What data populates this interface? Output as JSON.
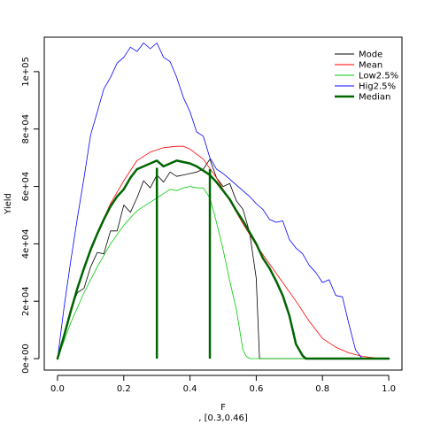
{
  "chart_data": {
    "type": "line",
    "xlabel": "F",
    "subtitle": ", [0.3,0.46]",
    "ylabel": "Yield",
    "xlim": [
      0,
      1
    ],
    "ylim": [
      -4000,
      112000
    ],
    "x_ticks": [
      0,
      0.2,
      0.4,
      0.6,
      0.8,
      1
    ],
    "x_tick_labels": [
      "0.0",
      "0.2",
      "0.4",
      "0.6",
      "0.8",
      "1.0"
    ],
    "y_ticks": [
      0,
      20000,
      40000,
      60000,
      80000,
      100000
    ],
    "y_tick_labels": [
      "0e+00",
      "2e+04",
      "4e+04",
      "6e+04",
      "8e+04",
      "1e+05"
    ],
    "legend_position": "top-right",
    "series": [
      {
        "name": "Mode",
        "color": "#000000",
        "width": 0.8,
        "x": [
          0,
          0.02,
          0.04,
          0.06,
          0.08,
          0.1,
          0.12,
          0.14,
          0.16,
          0.18,
          0.2,
          0.22,
          0.24,
          0.26,
          0.28,
          0.3,
          0.32,
          0.34,
          0.36,
          0.38,
          0.4,
          0.42,
          0.44,
          0.46,
          0.48,
          0.5,
          0.52,
          0.54,
          0.56,
          0.58,
          0.6,
          0.61,
          0.62,
          0.64,
          0.66,
          0.7,
          0.74,
          0.78,
          0.82,
          0.86,
          0.9,
          0.94,
          0.98,
          1.0
        ],
        "y": [
          0,
          8000,
          17000,
          23000,
          24500,
          32000,
          37000,
          36500,
          44500,
          44500,
          53500,
          51000,
          56000,
          62000,
          59500,
          64000,
          61500,
          65000,
          63500,
          64000,
          64500,
          65000,
          66000,
          69500,
          63000,
          60000,
          61000,
          55000,
          52000,
          44000,
          28000,
          0,
          0,
          0,
          0,
          0,
          0,
          0,
          0,
          0,
          0,
          0,
          0,
          0
        ]
      },
      {
        "name": "Mean",
        "color": "#ff0000",
        "width": 0.8,
        "x": [
          0,
          0.04,
          0.08,
          0.12,
          0.16,
          0.2,
          0.24,
          0.28,
          0.32,
          0.36,
          0.38,
          0.4,
          0.44,
          0.48,
          0.52,
          0.56,
          0.6,
          0.64,
          0.68,
          0.72,
          0.76,
          0.8,
          0.84,
          0.88,
          0.92,
          0.96,
          1.0
        ],
        "y": [
          0,
          17500,
          32000,
          44000,
          54000,
          62000,
          69000,
          72000,
          73500,
          74000,
          74000,
          73000,
          69500,
          63000,
          55000,
          47000,
          39500,
          33000,
          26500,
          20000,
          13000,
          7000,
          4000,
          2000,
          800,
          200,
          0
        ]
      },
      {
        "name": "Low2.5%",
        "color": "#00cc00",
        "width": 0.8,
        "x": [
          0,
          0.04,
          0.08,
          0.12,
          0.16,
          0.2,
          0.24,
          0.28,
          0.32,
          0.34,
          0.36,
          0.38,
          0.4,
          0.42,
          0.44,
          0.46,
          0.48,
          0.5,
          0.52,
          0.54,
          0.56,
          0.57,
          0.58,
          0.6,
          0.64,
          0.7,
          0.76,
          0.8,
          0.9,
          1.0
        ],
        "y": [
          0,
          12500,
          23000,
          32000,
          40000,
          46500,
          51500,
          54500,
          57500,
          59000,
          58500,
          59500,
          60000,
          59500,
          59500,
          56000,
          47500,
          38000,
          27000,
          17000,
          3000,
          800,
          0,
          0,
          0,
          0,
          0,
          0,
          0,
          0
        ]
      },
      {
        "name": "Hig2.5%",
        "color": "#0000ff",
        "width": 0.8,
        "x": [
          0,
          0.02,
          0.04,
          0.06,
          0.08,
          0.1,
          0.12,
          0.14,
          0.16,
          0.18,
          0.2,
          0.22,
          0.24,
          0.26,
          0.28,
          0.3,
          0.32,
          0.34,
          0.36,
          0.38,
          0.4,
          0.42,
          0.44,
          0.46,
          0.48,
          0.5,
          0.52,
          0.54,
          0.56,
          0.58,
          0.6,
          0.62,
          0.64,
          0.66,
          0.68,
          0.7,
          0.72,
          0.74,
          0.76,
          0.78,
          0.8,
          0.82,
          0.84,
          0.86,
          0.88,
          0.9,
          0.92,
          0.94,
          0.96,
          0.98,
          1.0
        ],
        "y": [
          0,
          18000,
          34000,
          49000,
          63000,
          78000,
          86000,
          94000,
          98000,
          103000,
          105000,
          108500,
          107000,
          110000,
          108000,
          110000,
          105000,
          103500,
          98000,
          91000,
          86000,
          79000,
          77500,
          70000,
          66000,
          64500,
          62500,
          60500,
          58500,
          56500,
          54000,
          52000,
          48500,
          47500,
          48000,
          41500,
          38500,
          36500,
          32500,
          30000,
          26500,
          27500,
          22000,
          21500,
          12000,
          3000,
          0,
          0,
          0,
          0,
          0
        ]
      },
      {
        "name": "Median",
        "color": "#006400",
        "width": 2.5,
        "x": [
          0,
          0.02,
          0.04,
          0.06,
          0.08,
          0.1,
          0.12,
          0.14,
          0.16,
          0.18,
          0.2,
          0.22,
          0.24,
          0.26,
          0.28,
          0.3,
          0.32,
          0.34,
          0.36,
          0.38,
          0.4,
          0.42,
          0.44,
          0.46,
          0.48,
          0.5,
          0.52,
          0.54,
          0.56,
          0.58,
          0.6,
          0.62,
          0.64,
          0.66,
          0.68,
          0.7,
          0.72,
          0.74,
          0.75,
          0.76,
          0.8,
          0.9,
          1.0
        ],
        "y": [
          0,
          8000,
          16500,
          24500,
          31500,
          38000,
          43500,
          48500,
          53000,
          56500,
          59000,
          63000,
          66000,
          67000,
          68000,
          69000,
          67000,
          68000,
          69000,
          68500,
          68000,
          67000,
          65500,
          64000,
          61500,
          58500,
          55500,
          51500,
          48000,
          44000,
          40000,
          35000,
          31500,
          27000,
          22000,
          15000,
          5000,
          1000,
          0,
          0,
          0,
          0,
          0
        ]
      }
    ],
    "vertical_lines": {
      "color": "#006400",
      "x": [
        0.3,
        0.46
      ],
      "y_top": [
        66500,
        66000
      ]
    }
  }
}
